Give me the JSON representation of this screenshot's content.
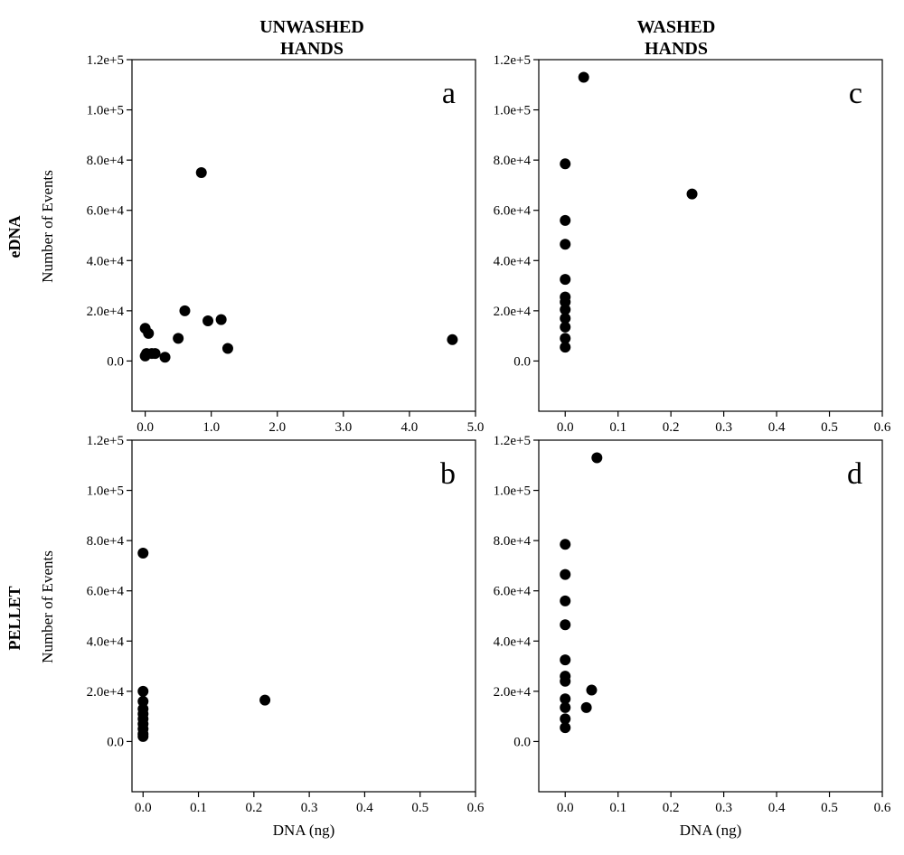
{
  "column_headers": {
    "left": [
      "UNWASHED",
      "HANDS"
    ],
    "right": [
      "WASHED",
      "HANDS"
    ]
  },
  "row_headers": {
    "top": "eDNA",
    "bottom": "PELLET"
  },
  "colors": {
    "marker": "#000000",
    "axes": "#000000",
    "background": "#ffffff"
  },
  "chart_data": [
    {
      "type": "scatter",
      "panel": "a",
      "ylabel": "Number of Events",
      "xlabel": "",
      "xlim": [
        -0.2,
        5.0
      ],
      "ylim": [
        -20000,
        120000
      ],
      "xticks": [
        0,
        1,
        2,
        3,
        4,
        5
      ],
      "xtick_labels": [
        "0.0",
        "1.0",
        "2.0",
        "3.0",
        "4.0",
        "5.0"
      ],
      "yticks": [
        0,
        20000,
        40000,
        60000,
        80000,
        100000,
        120000
      ],
      "ytick_labels": [
        "0.0",
        "2.0e+4",
        "4.0e+4",
        "6.0e+4",
        "8.0e+4",
        "1.0e+5",
        "1.2e+5"
      ],
      "points": [
        [
          0.0,
          2000
        ],
        [
          0.02,
          3000
        ],
        [
          0.0,
          13000
        ],
        [
          0.05,
          11000
        ],
        [
          0.1,
          3000
        ],
        [
          0.15,
          3000
        ],
        [
          0.3,
          1500
        ],
        [
          0.5,
          9000
        ],
        [
          0.6,
          20000
        ],
        [
          0.85,
          75000
        ],
        [
          0.95,
          16000
        ],
        [
          1.15,
          16500
        ],
        [
          1.25,
          5000
        ],
        [
          4.65,
          8500
        ]
      ]
    },
    {
      "type": "scatter",
      "panel": "b",
      "ylabel": "Number of Events",
      "xlabel": "DNA (ng)",
      "xlim": [
        -0.02,
        0.6
      ],
      "ylim": [
        -20000,
        120000
      ],
      "xticks": [
        0,
        0.1,
        0.2,
        0.3,
        0.4,
        0.5,
        0.6
      ],
      "xtick_labels": [
        "0.0",
        "0.1",
        "0.2",
        "0.3",
        "0.4",
        "0.5",
        "0.6"
      ],
      "yticks": [
        0,
        20000,
        40000,
        60000,
        80000,
        100000,
        120000
      ],
      "ytick_labels": [
        "0.0",
        "2.0e+4",
        "4.0e+4",
        "6.0e+4",
        "8.0e+4",
        "1.0e+5",
        "1.2e+5"
      ],
      "points": [
        [
          0.0,
          75000
        ],
        [
          0.0,
          20000
        ],
        [
          0.0,
          16000
        ],
        [
          0.0,
          13000
        ],
        [
          0.0,
          11000
        ],
        [
          0.0,
          9000
        ],
        [
          0.0,
          7000
        ],
        [
          0.0,
          5000
        ],
        [
          0.0,
          3000
        ],
        [
          0.0,
          2000
        ],
        [
          0.22,
          16500
        ]
      ]
    },
    {
      "type": "scatter",
      "panel": "c",
      "ylabel": "",
      "xlabel": "",
      "xlim": [
        -0.05,
        0.6
      ],
      "ylim": [
        -20000,
        120000
      ],
      "xticks": [
        0,
        0.1,
        0.2,
        0.3,
        0.4,
        0.5,
        0.6
      ],
      "xtick_labels": [
        "0.0",
        "0.1",
        "0.2",
        "0.3",
        "0.4",
        "0.5",
        "0.6"
      ],
      "yticks": [
        0,
        20000,
        40000,
        60000,
        80000,
        100000,
        120000
      ],
      "ytick_labels": [
        "0.0",
        "2.0e+4",
        "4.0e+4",
        "6.0e+4",
        "8.0e+4",
        "1.0e+5",
        "1.2e+5"
      ],
      "points": [
        [
          0.035,
          113000
        ],
        [
          0.0,
          78500
        ],
        [
          0.24,
          66500
        ],
        [
          0.0,
          56000
        ],
        [
          0.0,
          46500
        ],
        [
          0.0,
          32500
        ],
        [
          0.0,
          25500
        ],
        [
          0.0,
          23500
        ],
        [
          0.0,
          20500
        ],
        [
          0.0,
          17000
        ],
        [
          0.0,
          13500
        ],
        [
          0.0,
          9000
        ],
        [
          0.0,
          5500
        ]
      ]
    },
    {
      "type": "scatter",
      "panel": "d",
      "ylabel": "",
      "xlabel": "DNA (ng)",
      "xlim": [
        -0.05,
        0.6
      ],
      "ylim": [
        -20000,
        120000
      ],
      "xticks": [
        0,
        0.1,
        0.2,
        0.3,
        0.4,
        0.5,
        0.6
      ],
      "xtick_labels": [
        "0.0",
        "0.1",
        "0.2",
        "0.3",
        "0.4",
        "0.5",
        "0.6"
      ],
      "yticks": [
        0,
        20000,
        40000,
        60000,
        80000,
        100000,
        120000
      ],
      "ytick_labels": [
        "0.0",
        "2.0e+4",
        "4.0e+4",
        "6.0e+4",
        "8.0e+4",
        "1.0e+5",
        "1.2e+5"
      ],
      "points": [
        [
          0.06,
          113000
        ],
        [
          0.0,
          78500
        ],
        [
          0.0,
          66500
        ],
        [
          0.0,
          56000
        ],
        [
          0.0,
          46500
        ],
        [
          0.0,
          32500
        ],
        [
          0.0,
          26000
        ],
        [
          0.0,
          24000
        ],
        [
          0.0,
          17000
        ],
        [
          0.0,
          13500
        ],
        [
          0.0,
          9000
        ],
        [
          0.0,
          5500
        ],
        [
          0.05,
          20500
        ],
        [
          0.04,
          13500
        ]
      ]
    }
  ]
}
